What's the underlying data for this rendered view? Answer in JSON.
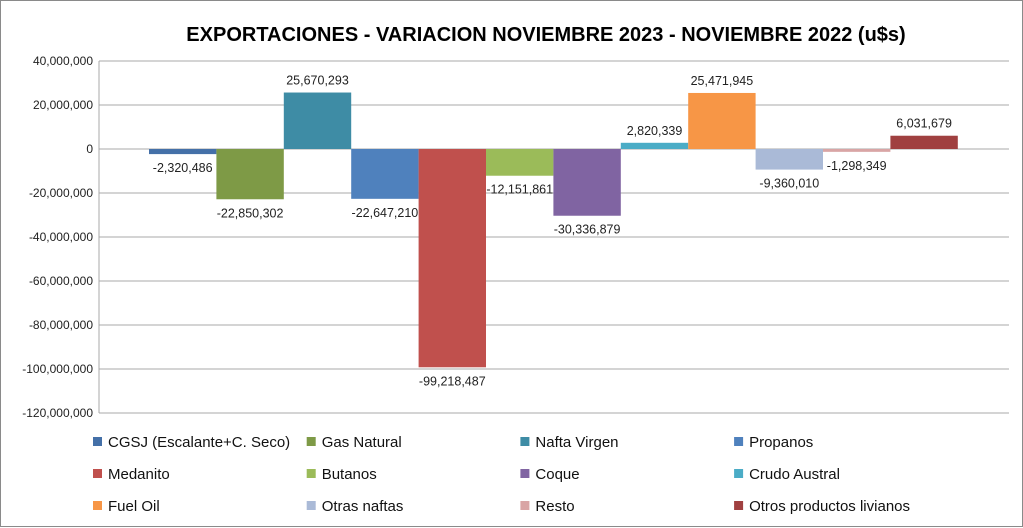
{
  "chart_data": {
    "type": "bar",
    "title": "EXPORTACIONES - VARIACION NOVIEMBRE 2023 - NOVIEMBRE 2022 (u$s)",
    "xlabel": "",
    "ylabel": "",
    "ylim": [
      -120000000,
      40000000
    ],
    "yticks": [
      40000000,
      20000000,
      0,
      -20000000,
      -40000000,
      -60000000,
      -80000000,
      -100000000,
      -120000000
    ],
    "ytick_labels": [
      "40,000,000",
      "20,000,000",
      "0",
      "-20,000,000",
      "-40,000,000",
      "-60,000,000",
      "-80,000,000",
      "-100,000,000",
      "-120,000,000"
    ],
    "grid": true,
    "legend_position": "bottom",
    "series": [
      {
        "name": "CGSJ (Escalante+C. Seco)",
        "value": -2320486,
        "label": "-2,320,486",
        "color": "#4470A8"
      },
      {
        "name": "Gas Natural",
        "value": -22850302,
        "label": "-22,850,302",
        "color": "#7E9A46"
      },
      {
        "name": "Nafta Virgen",
        "value": 25670293,
        "label": "25,670,293",
        "color": "#3E8CA5"
      },
      {
        "name": "Propanos",
        "value": -22647210,
        "label": "-22,647,210",
        "color": "#4F81BD"
      },
      {
        "name": "Medanito",
        "value": -99218487,
        "label": "-99,218,487",
        "color": "#C0504D"
      },
      {
        "name": "Butanos",
        "value": -12151861,
        "label": "-12,151,861",
        "color": "#9BBB59"
      },
      {
        "name": "Coque",
        "value": -30336879,
        "label": "-30,336,879",
        "color": "#8064A2"
      },
      {
        "name": "Crudo Austral",
        "value": 2820339,
        "label": "2,820,339",
        "color": "#4BACC6"
      },
      {
        "name": "Fuel Oil",
        "value": 25471945,
        "label": "25,471,945",
        "color": "#F79646"
      },
      {
        "name": "Otras naftas",
        "value": -9360010,
        "label": "-9,360,010",
        "color": "#AABAD7"
      },
      {
        "name": "Resto",
        "value": -1298349,
        "label": "-1,298,349",
        "color": "#D9A5A5"
      },
      {
        "name": "Otros productos livianos",
        "value": 6031679,
        "label": "6,031,679",
        "color": "#A04040"
      }
    ]
  }
}
